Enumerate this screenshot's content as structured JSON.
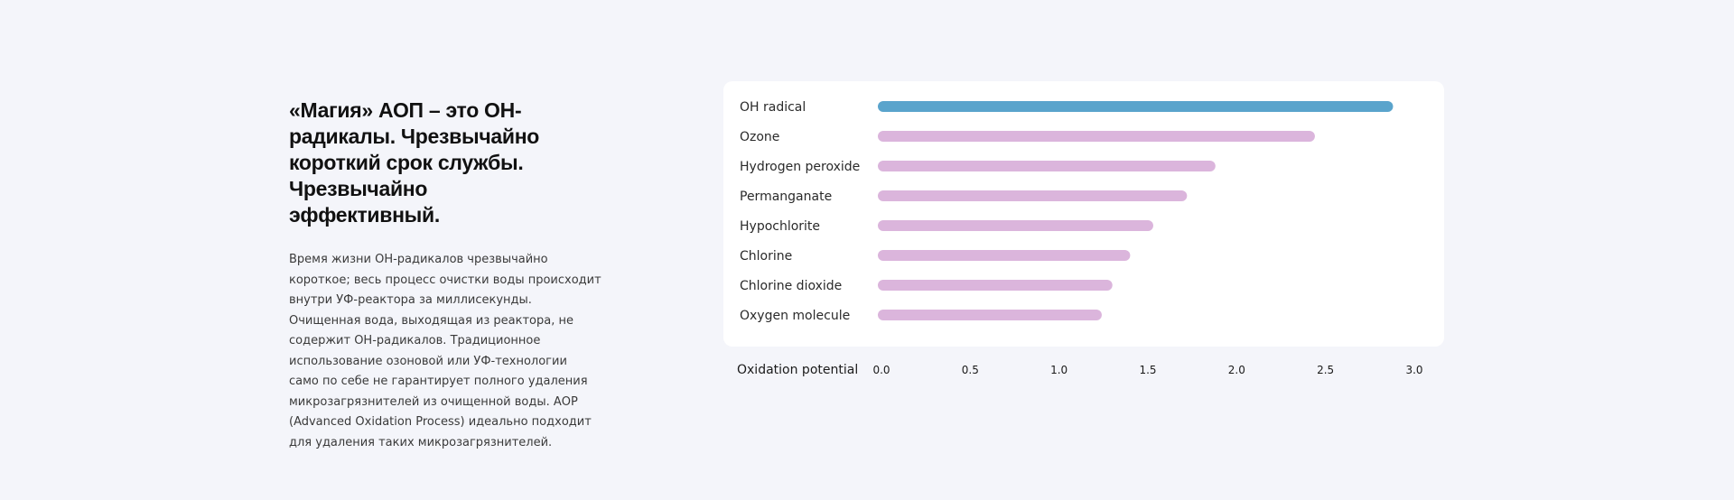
{
  "heading_lines": [
    "«Магия» АОП – это ОН-",
    "радикалы. Чрезвычайно",
    "короткий срок службы.",
    "Чрезвычайно",
    "эффективный."
  ],
  "body_lines": [
    "Время жизни ОН-радикалов чрезвычайно",
    "короткое; весь процесс очистки воды происходит",
    "внутри УФ-реактора за миллисекунды.",
    "Очищенная вода, выходящая из реактора, не",
    "содержит ОН-радикалов. Традиционное",
    "использование озоновой или УФ-технологии",
    "само по себе не гарантирует полного удаления",
    "микрозагрязнителей из очищенной воды. АОР",
    "(Advanced Oxidation Process) идеально подходит",
    "для удаления таких микрозагрязнителей."
  ],
  "chart_data": {
    "type": "bar",
    "orientation": "horizontal",
    "categories": [
      "OH radical",
      "Ozone",
      "Hydrogen peroxide",
      "Permanganate",
      "Hypochlorite",
      "Chlorine",
      "Chlorine dioxide",
      "Oxygen molecule"
    ],
    "values": [
      2.86,
      2.42,
      1.86,
      1.7,
      1.51,
      1.38,
      1.28,
      1.22
    ],
    "xlabel": "Oxidation potential",
    "xlim": [
      0,
      3.0
    ],
    "ticks": [
      "0.0",
      "0.5",
      "1.0",
      "1.5",
      "2.0",
      "2.5",
      "3.0"
    ],
    "grid": false,
    "colors": {
      "highlight": "#5aa4cc",
      "default": "#dbb5dc"
    },
    "highlight_index": 0
  }
}
